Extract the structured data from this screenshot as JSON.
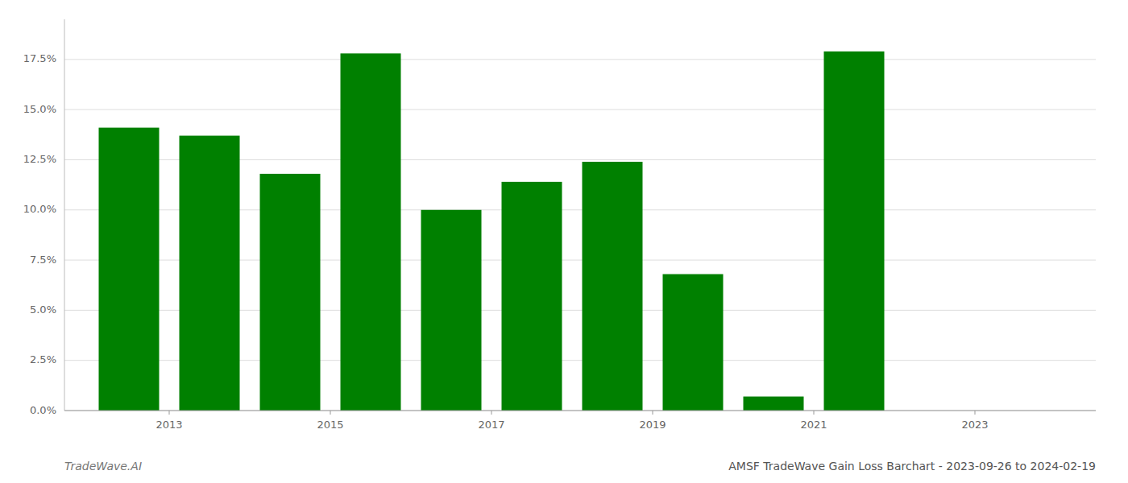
{
  "chart_data": {
    "type": "bar",
    "title": "AMSF TradeWave Gain Loss Barchart - 2023-09-26 to 2024-02-19",
    "annotations": [
      "TradeWave.AI"
    ],
    "x": [
      2012,
      2013,
      2014,
      2015,
      2016,
      2017,
      2018,
      2019,
      2020,
      2021
    ],
    "values": [
      0.141,
      0.137,
      0.118,
      0.178,
      0.1,
      0.114,
      0.124,
      0.068,
      0.007,
      0.179
    ],
    "color": "#008000",
    "xlim": [
      2011.2,
      2024.0
    ],
    "xticks": [
      {
        "value": 2012.5,
        "label": "2013"
      },
      {
        "value": 2014.5,
        "label": "2015"
      },
      {
        "value": 2016.5,
        "label": "2017"
      },
      {
        "value": 2018.5,
        "label": "2019"
      },
      {
        "value": 2020.5,
        "label": "2021"
      },
      {
        "value": 2022.5,
        "label": "2023"
      }
    ],
    "ylim": [
      0,
      0.195
    ],
    "yticks": [
      {
        "value": 0.0,
        "label": "0.0%"
      },
      {
        "value": 0.025,
        "label": "2.5%"
      },
      {
        "value": 0.05,
        "label": "5.0%"
      },
      {
        "value": 0.075,
        "label": "7.5%"
      },
      {
        "value": 0.1,
        "label": "10.0%"
      },
      {
        "value": 0.125,
        "label": "12.5%"
      },
      {
        "value": 0.15,
        "label": "15.0%"
      },
      {
        "value": 0.175,
        "label": "17.5%"
      }
    ],
    "grid": true
  }
}
